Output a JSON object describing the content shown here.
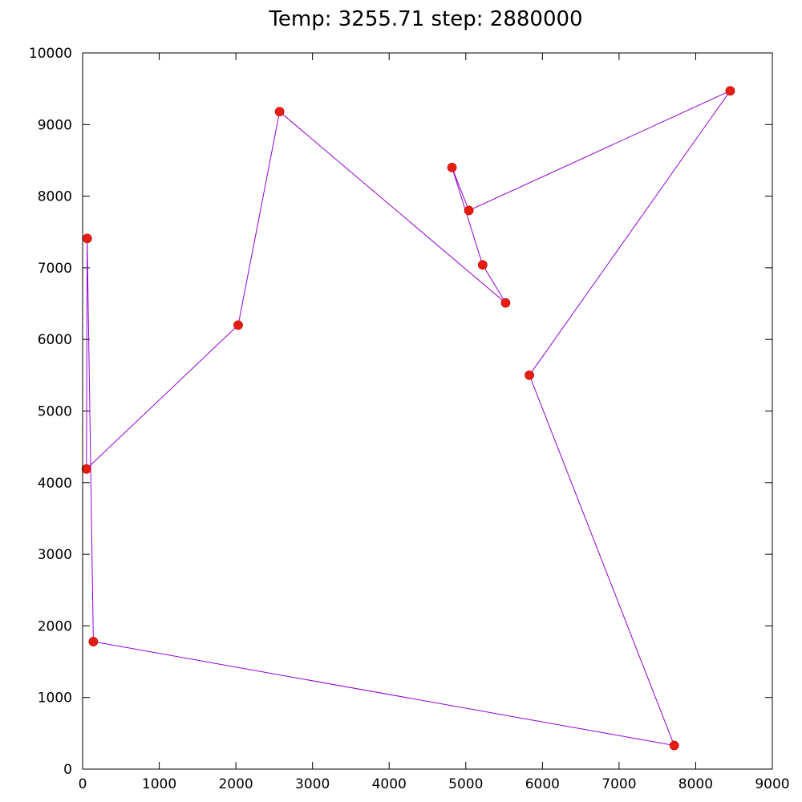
{
  "chart_data": {
    "type": "line",
    "title": "Temp: 3255.71  step: 2880000",
    "xlabel": "",
    "ylabel": "",
    "xlim": [
      0,
      9000
    ],
    "ylim": [
      0,
      10000
    ],
    "x_ticks": [
      "0",
      "1000",
      "2000",
      "3000",
      "4000",
      "5000",
      "6000",
      "7000",
      "8000",
      "9000"
    ],
    "y_ticks": [
      "0",
      "1000",
      "2000",
      "3000",
      "4000",
      "5000",
      "6000",
      "7000",
      "8000",
      "9000",
      "10000"
    ],
    "grid": false,
    "closed_path": true,
    "line_color": "#9400d3",
    "point_color": "#e51e10",
    "points": [
      {
        "x": 8450,
        "y": 9470
      },
      {
        "x": 5830,
        "y": 5500
      },
      {
        "x": 7720,
        "y": 330
      },
      {
        "x": 140,
        "y": 1780
      },
      {
        "x": 60,
        "y": 7410
      },
      {
        "x": 50,
        "y": 4190
      },
      {
        "x": 2030,
        "y": 6200
      },
      {
        "x": 2570,
        "y": 9180
      },
      {
        "x": 5520,
        "y": 6510
      },
      {
        "x": 5220,
        "y": 7040
      },
      {
        "x": 4820,
        "y": 8400
      },
      {
        "x": 5040,
        "y": 7800
      }
    ]
  }
}
